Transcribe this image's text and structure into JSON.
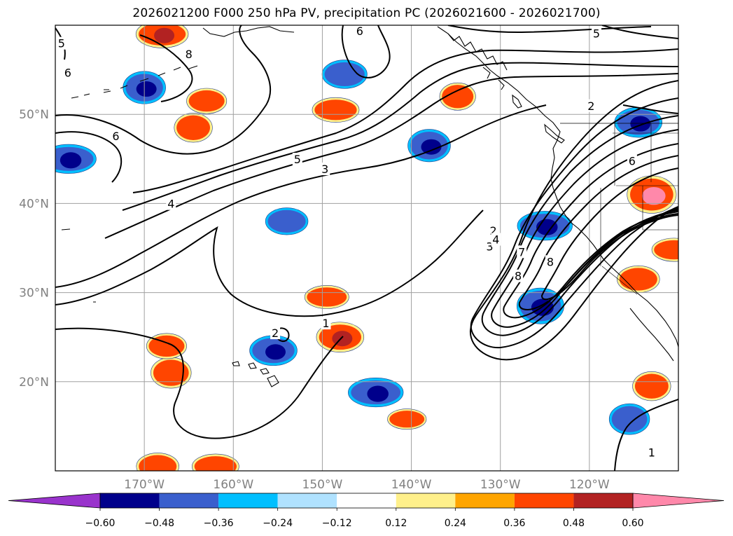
{
  "title": "2026021200 F000 250 hPa PV, precipitation PC (2026021600 - 2026021700)",
  "map": {
    "lon_range": [
      -180,
      -110
    ],
    "lat_range": [
      10,
      60
    ],
    "lat_labels": [
      {
        "lat": 50,
        "text": "50°N"
      },
      {
        "lat": 40,
        "text": "40°N"
      },
      {
        "lat": 30,
        "text": "30°N"
      },
      {
        "lat": 20,
        "text": "20°N"
      }
    ],
    "lon_labels": [
      {
        "lon": -170,
        "text": "170°W"
      },
      {
        "lon": -160,
        "text": "160°W"
      },
      {
        "lon": -150,
        "text": "150°W"
      },
      {
        "lon": -140,
        "text": "140°W"
      },
      {
        "lon": -130,
        "text": "130°W"
      },
      {
        "lon": -120,
        "text": "120°W"
      }
    ],
    "contour_labels": [
      {
        "text": "6",
        "lon": -145.8,
        "lat": 59.3
      },
      {
        "text": "5",
        "lon": -119.2,
        "lat": 59.0
      },
      {
        "text": "5",
        "lon": -179.3,
        "lat": 57.9
      },
      {
        "text": "6",
        "lon": -178.6,
        "lat": 54.6
      },
      {
        "text": "8",
        "lon": -165.0,
        "lat": 56.7
      },
      {
        "text": "6",
        "lon": -173.2,
        "lat": 47.5
      },
      {
        "text": "5",
        "lon": -152.8,
        "lat": 44.9
      },
      {
        "text": "3",
        "lon": -149.7,
        "lat": 43.8
      },
      {
        "text": "4",
        "lon": -167.0,
        "lat": 39.9
      },
      {
        "text": "2",
        "lon": -119.8,
        "lat": 50.9
      },
      {
        "text": "6",
        "lon": -115.2,
        "lat": 44.7
      },
      {
        "text": "2",
        "lon": -130.8,
        "lat": 36.9
      },
      {
        "text": "3",
        "lon": -131.2,
        "lat": 35.1
      },
      {
        "text": "4",
        "lon": -130.5,
        "lat": 35.9
      },
      {
        "text": "7",
        "lon": -127.6,
        "lat": 34.5
      },
      {
        "text": "8",
        "lon": -124.4,
        "lat": 33.4
      },
      {
        "text": "8",
        "lon": -128.0,
        "lat": 31.8
      },
      {
        "text": "2",
        "lon": -155.3,
        "lat": 25.4
      },
      {
        "text": "1",
        "lon": -149.6,
        "lat": 26.5
      },
      {
        "text": "1",
        "lon": -113.0,
        "lat": 12.0
      }
    ]
  },
  "colorbar": {
    "tick_labels": [
      "−0.60",
      "−0.48",
      "−0.36",
      "−0.24",
      "−0.12",
      "0.12",
      "0.24",
      "0.36",
      "0.48",
      "0.60"
    ],
    "colors": [
      "#9933cc",
      "#00008b",
      "#3a5fcd",
      "#00bfff",
      "#b0e2ff",
      "#ffffff",
      "#fff08b",
      "#ffa500",
      "#ff4500",
      "#b22222",
      "#ff88aa"
    ]
  },
  "chart_data": {
    "type": "map-contour",
    "fields": [
      "250 hPa potential vorticity (contours)",
      "precipitation PC (shaded)"
    ],
    "contour_levels": [
      1,
      2,
      3,
      4,
      5,
      6,
      7,
      8
    ],
    "shading_bounds": [
      -0.6,
      -0.48,
      -0.36,
      -0.24,
      -0.12,
      0.12,
      0.24,
      0.36,
      0.48,
      0.6
    ],
    "precip_blobs": [
      {
        "lon": -170.0,
        "lat": 53.0,
        "value": -0.5
      },
      {
        "lon": -147.5,
        "lat": 54.5,
        "value": -0.45
      },
      {
        "lon": -178.5,
        "lat": 45.0,
        "value": -0.55
      },
      {
        "lon": -138.0,
        "lat": 46.5,
        "value": -0.5
      },
      {
        "lon": -154.0,
        "lat": 38.0,
        "value": -0.4
      },
      {
        "lon": -125.0,
        "lat": 37.5,
        "value": -0.55
      },
      {
        "lon": -125.5,
        "lat": 28.5,
        "value": -0.6
      },
      {
        "lon": -155.5,
        "lat": 23.5,
        "value": -0.5
      },
      {
        "lon": -144.0,
        "lat": 18.8,
        "value": -0.55
      },
      {
        "lon": -115.5,
        "lat": 15.8,
        "value": -0.45
      },
      {
        "lon": -114.5,
        "lat": 49.1,
        "value": -0.5
      },
      {
        "lon": -168.0,
        "lat": 59.0,
        "value": 0.5
      },
      {
        "lon": -164.5,
        "lat": 48.5,
        "value": 0.4
      },
      {
        "lon": -163.0,
        "lat": 51.5,
        "value": 0.35
      },
      {
        "lon": -148.5,
        "lat": 50.5,
        "value": 0.4
      },
      {
        "lon": -134.8,
        "lat": 52.0,
        "value": 0.35
      },
      {
        "lon": -148.0,
        "lat": 25.0,
        "value": 0.5
      },
      {
        "lon": -149.5,
        "lat": 29.5,
        "value": 0.35
      },
      {
        "lon": -167.0,
        "lat": 21.0,
        "value": 0.45
      },
      {
        "lon": -167.5,
        "lat": 24.0,
        "value": 0.35
      },
      {
        "lon": -140.5,
        "lat": 15.8,
        "value": 0.25
      },
      {
        "lon": -113.0,
        "lat": 41.0,
        "value": 0.65
      },
      {
        "lon": -114.5,
        "lat": 31.5,
        "value": 0.4
      },
      {
        "lon": -110.5,
        "lat": 34.8,
        "value": 0.35
      },
      {
        "lon": -113.0,
        "lat": 19.5,
        "value": 0.4
      },
      {
        "lon": -168.5,
        "lat": 10.5,
        "value": 0.4
      },
      {
        "lon": -162.0,
        "lat": 10.5,
        "value": 0.4
      }
    ]
  }
}
